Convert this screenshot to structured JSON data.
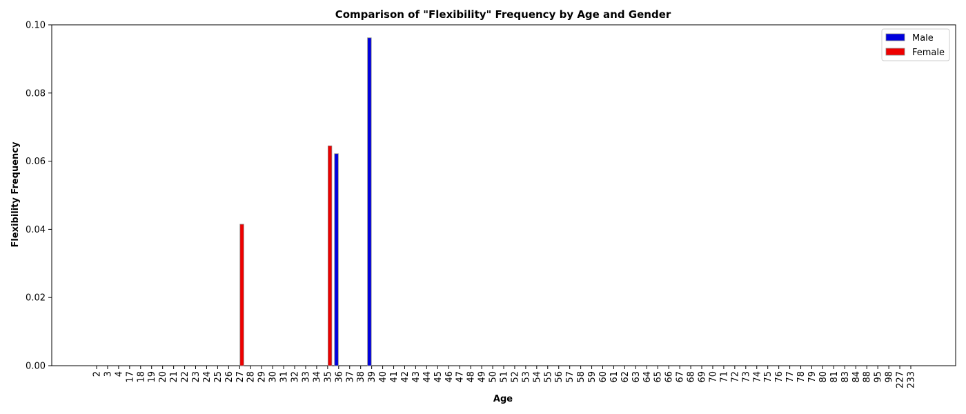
{
  "chart_data": {
    "type": "bar",
    "title": "Comparison of \"Flexibility\" Frequency by Age and Gender",
    "xlabel": "Age",
    "ylabel": "Flexibility Frequency",
    "ylim": [
      0,
      0.1
    ],
    "yticks": [
      "0.00",
      "0.02",
      "0.04",
      "0.06",
      "0.08",
      "0.10"
    ],
    "grid": false,
    "legend_position": "top-right",
    "categories": [
      "2",
      "3",
      "4",
      "17",
      "18",
      "19",
      "20",
      "21",
      "22",
      "23",
      "24",
      "25",
      "26",
      "27",
      "28",
      "29",
      "30",
      "31",
      "32",
      "33",
      "34",
      "35",
      "36",
      "37",
      "38",
      "39",
      "40",
      "41",
      "42",
      "43",
      "44",
      "45",
      "46",
      "47",
      "48",
      "49",
      "50",
      "51",
      "52",
      "53",
      "54",
      "55",
      "56",
      "57",
      "58",
      "59",
      "60",
      "61",
      "62",
      "63",
      "64",
      "65",
      "66",
      "67",
      "68",
      "69",
      "70",
      "71",
      "72",
      "73",
      "74",
      "75",
      "76",
      "77",
      "78",
      "79",
      "80",
      "81",
      "83",
      "84",
      "88",
      "95",
      "98",
      "227",
      "233"
    ],
    "series": [
      {
        "name": "Male",
        "color": "#0000dd",
        "values": [
          0,
          0,
          0,
          0,
          0,
          0,
          0,
          0,
          0,
          0,
          0,
          0,
          0,
          0,
          0,
          0,
          0,
          0,
          0,
          0,
          0,
          0,
          0.0622,
          0,
          0,
          0.0962,
          0,
          0,
          0,
          0,
          0,
          0,
          0,
          0,
          0,
          0,
          0,
          0,
          0,
          0,
          0,
          0,
          0,
          0,
          0,
          0,
          0,
          0,
          0,
          0,
          0,
          0,
          0,
          0,
          0,
          0,
          0,
          0,
          0,
          0,
          0,
          0,
          0,
          0,
          0,
          0,
          0,
          0,
          0,
          0,
          0,
          0,
          0,
          0,
          0
        ]
      },
      {
        "name": "Female",
        "color": "#ee0000",
        "values": [
          0,
          0,
          0,
          0,
          0,
          0,
          0,
          0,
          0,
          0,
          0,
          0,
          0,
          0.0415,
          0,
          0,
          0,
          0,
          0,
          0,
          0,
          0.0645,
          0,
          0,
          0,
          0,
          0,
          0,
          0,
          0,
          0,
          0,
          0,
          0,
          0,
          0,
          0,
          0,
          0,
          0,
          0,
          0,
          0,
          0,
          0,
          0,
          0,
          0,
          0,
          0,
          0,
          0,
          0,
          0,
          0,
          0,
          0,
          0,
          0,
          0,
          0,
          0,
          0,
          0,
          0,
          0,
          0,
          0,
          0,
          0,
          0,
          0,
          0,
          0,
          0
        ]
      }
    ]
  }
}
